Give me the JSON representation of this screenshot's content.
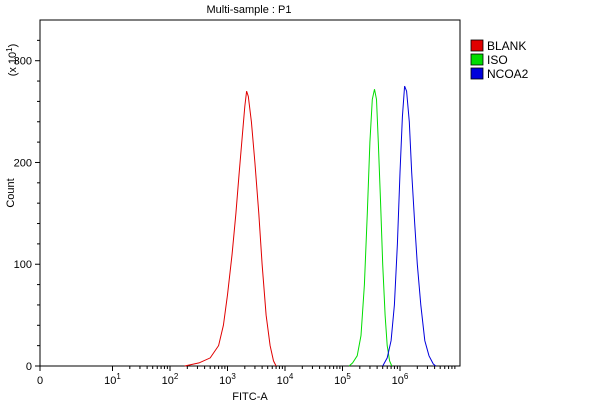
{
  "chart_data": {
    "type": "line",
    "title": "Multi-sample : P1",
    "xlabel": "FITC-A",
    "ylabel": "Count",
    "y_multiplier_label": "(x 10",
    "y_multiplier_exp": "1",
    "y_multiplier_close": ")",
    "x_scale": "log",
    "xlim": [
      0,
      5000000
    ],
    "ylim": [
      0,
      340
    ],
    "x_ticks": [
      {
        "base": "0",
        "exp": "",
        "value": 0
      },
      {
        "base": "10",
        "exp": "1",
        "value": 10
      },
      {
        "base": "10",
        "exp": "2",
        "value": 100
      },
      {
        "base": "10",
        "exp": "3",
        "value": 1000
      },
      {
        "base": "10",
        "exp": "4",
        "value": 10000
      },
      {
        "base": "10",
        "exp": "5",
        "value": 100000
      },
      {
        "base": "10",
        "exp": "6",
        "value": 1000000
      }
    ],
    "y_ticks": [
      {
        "label": "0",
        "value": 0
      },
      {
        "label": "100",
        "value": 100
      },
      {
        "label": "200",
        "value": 200
      },
      {
        "label": "300",
        "value": 300
      }
    ],
    "grid": false,
    "legend_position": "right",
    "series": [
      {
        "name": "BLANK",
        "color": "#e00000",
        "points": [
          [
            180,
            0
          ],
          [
            320,
            3
          ],
          [
            500,
            8
          ],
          [
            700,
            20
          ],
          [
            850,
            40
          ],
          [
            1000,
            70
          ],
          [
            1200,
            110
          ],
          [
            1400,
            150
          ],
          [
            1600,
            190
          ],
          [
            1800,
            225
          ],
          [
            2000,
            255
          ],
          [
            2150,
            270
          ],
          [
            2300,
            265
          ],
          [
            2600,
            240
          ],
          [
            3000,
            200
          ],
          [
            3500,
            150
          ],
          [
            4000,
            100
          ],
          [
            4700,
            50
          ],
          [
            5500,
            20
          ],
          [
            6300,
            5
          ],
          [
            7000,
            0
          ]
        ]
      },
      {
        "name": "ISO",
        "color": "#00dd00",
        "points": [
          [
            130000,
            0
          ],
          [
            150000,
            3
          ],
          [
            180000,
            10
          ],
          [
            210000,
            30
          ],
          [
            240000,
            80
          ],
          [
            270000,
            150
          ],
          [
            300000,
            220
          ],
          [
            330000,
            262
          ],
          [
            360000,
            272
          ],
          [
            390000,
            262
          ],
          [
            420000,
            220
          ],
          [
            460000,
            160
          ],
          [
            500000,
            100
          ],
          [
            550000,
            50
          ],
          [
            600000,
            20
          ],
          [
            660000,
            5
          ],
          [
            720000,
            0
          ]
        ]
      },
      {
        "name": "NCOA2",
        "color": "#0000dd",
        "points": [
          [
            500000,
            0
          ],
          [
            600000,
            8
          ],
          [
            700000,
            25
          ],
          [
            800000,
            60
          ],
          [
            900000,
            120
          ],
          [
            1000000,
            190
          ],
          [
            1100000,
            245
          ],
          [
            1200000,
            275
          ],
          [
            1300000,
            270
          ],
          [
            1450000,
            240
          ],
          [
            1600000,
            190
          ],
          [
            1800000,
            140
          ],
          [
            2000000,
            100
          ],
          [
            2300000,
            60
          ],
          [
            2700000,
            25
          ],
          [
            3200000,
            10
          ],
          [
            3800000,
            2
          ],
          [
            4200000,
            0
          ]
        ]
      }
    ]
  }
}
